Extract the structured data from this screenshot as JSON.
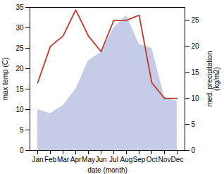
{
  "chart_data": {
    "type": "line",
    "xlabel": "date (month)",
    "ylabel": "max temp (C)",
    "y2label": "med. precipitation\n(kg/m2)",
    "categories": [
      "Jan",
      "Feb",
      "Mar",
      "Apr",
      "May",
      "Jun",
      "Jul",
      "Aug",
      "Sep",
      "Oct",
      "Nov",
      "Dec"
    ],
    "series": [
      {
        "type": "area",
        "color": "#c5cce8",
        "values": [
          10,
          9,
          11,
          15,
          22,
          24,
          30,
          33,
          26,
          25,
          13,
          12
        ]
      },
      {
        "type": "line",
        "color": "#c0392b",
        "axis": "y2",
        "values": [
          13,
          20,
          22,
          27,
          22,
          19,
          25,
          25,
          26,
          13,
          10,
          10
        ]
      }
    ],
    "ylim": [
      0,
      35
    ],
    "yticks": [
      0,
      5,
      10,
      15,
      20,
      25,
      30,
      35
    ],
    "y2lim": [
      0,
      27.5
    ],
    "y2ticks": [
      0,
      5,
      10,
      15,
      20,
      25
    ]
  }
}
